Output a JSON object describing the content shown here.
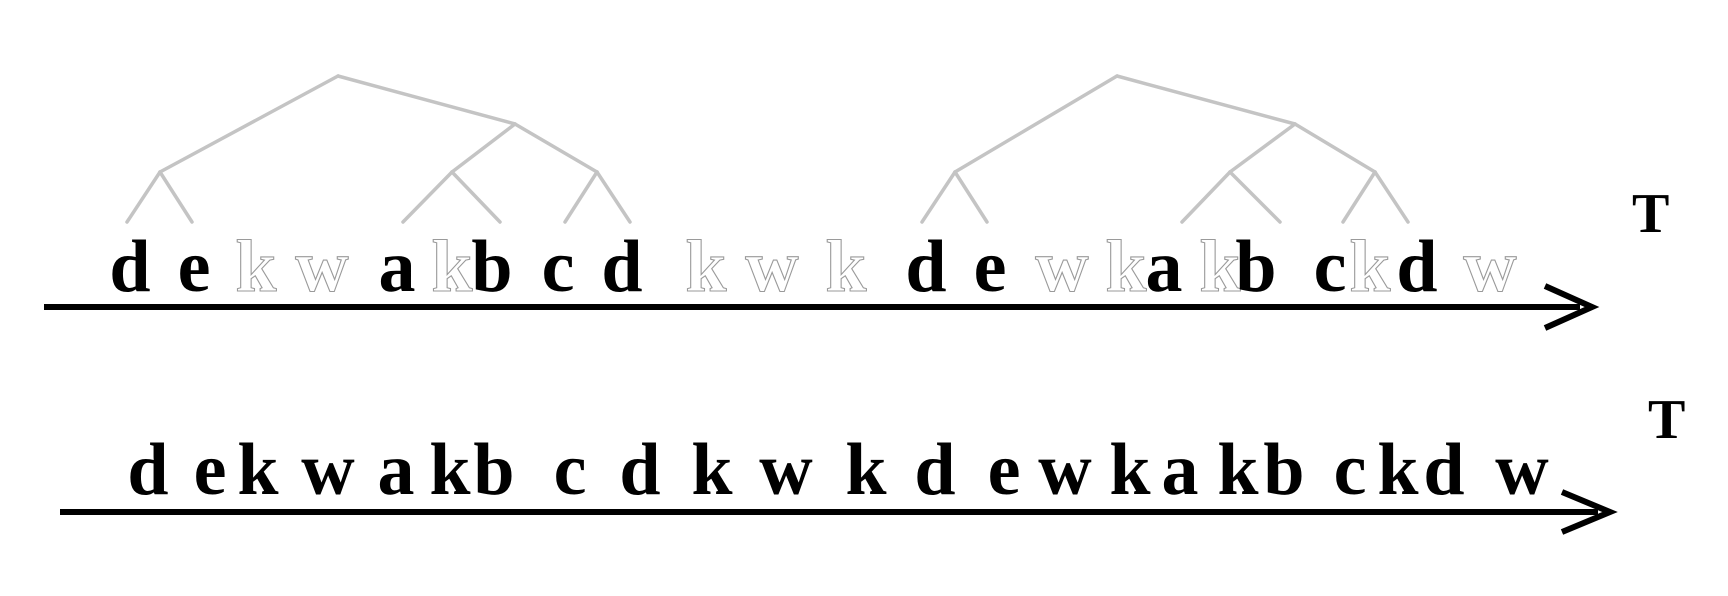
{
  "top_sequence": {
    "axis_label": "T",
    "symbols": [
      {
        "char": "d",
        "kind": "bold"
      },
      {
        "char": "e",
        "kind": "bold"
      },
      {
        "char": "k",
        "kind": "ghost"
      },
      {
        "char": "w",
        "kind": "ghost"
      },
      {
        "char": "a",
        "kind": "bold"
      },
      {
        "char": "k",
        "kind": "ghost"
      },
      {
        "char": "b",
        "kind": "bold"
      },
      {
        "char": "c",
        "kind": "bold"
      },
      {
        "char": "d",
        "kind": "bold"
      },
      {
        "char": "k",
        "kind": "ghost"
      },
      {
        "char": "w",
        "kind": "ghost"
      },
      {
        "char": "k",
        "kind": "ghost"
      },
      {
        "char": "d",
        "kind": "bold"
      },
      {
        "char": "e",
        "kind": "bold"
      },
      {
        "char": "w",
        "kind": "ghost"
      },
      {
        "char": "k",
        "kind": "ghost"
      },
      {
        "char": "a",
        "kind": "bold"
      },
      {
        "char": "k",
        "kind": "ghost"
      },
      {
        "char": "b",
        "kind": "bold"
      },
      {
        "char": "c",
        "kind": "bold"
      },
      {
        "char": "k",
        "kind": "ghost"
      },
      {
        "char": "d",
        "kind": "bold"
      },
      {
        "char": "w",
        "kind": "ghost"
      }
    ],
    "tree_color": "#c4c4c4",
    "ghost_outline_color": "#9a9a9a"
  },
  "bottom_sequence": {
    "axis_label": "T",
    "symbols": [
      "d",
      "e",
      "k",
      "w",
      "a",
      "k",
      "b",
      "c",
      "d",
      "k",
      "w",
      "k",
      "d",
      "e",
      "w",
      "k",
      "a",
      "k",
      "b",
      "c",
      "k",
      "d",
      "w"
    ]
  }
}
